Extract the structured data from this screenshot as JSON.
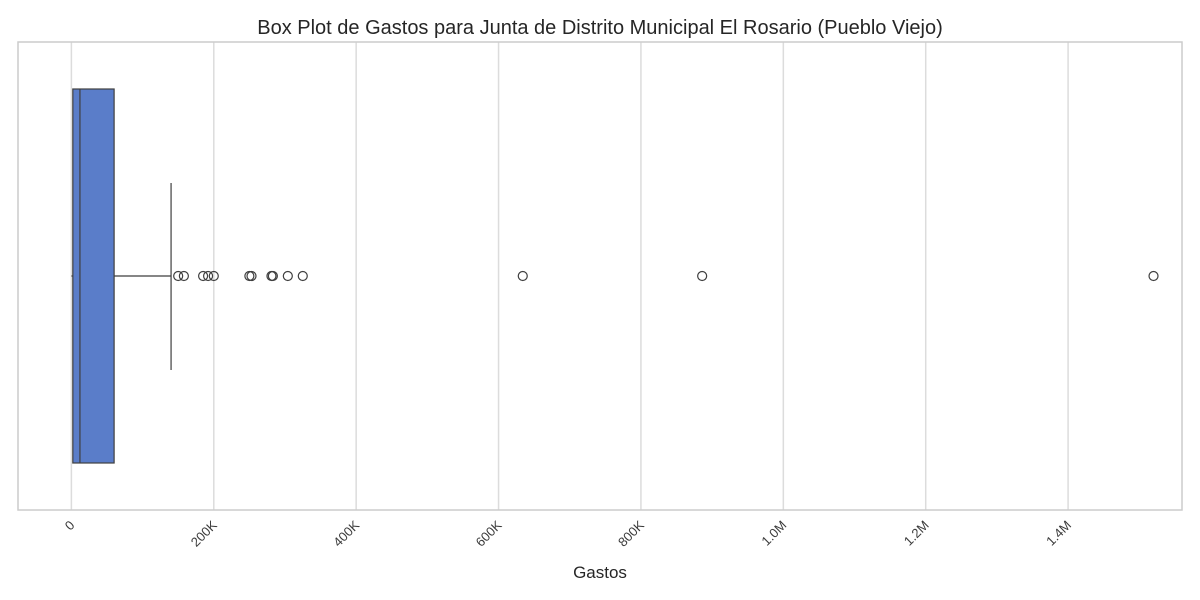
{
  "chart_data": {
    "type": "box",
    "orientation": "horizontal",
    "title": "Box Plot de Gastos para Junta de Distrito Municipal El Rosario (Pueblo Viejo)",
    "xlabel": "Gastos",
    "ylabel": "",
    "xlim": [
      -75000,
      1560000
    ],
    "x_ticks": [
      0,
      200000,
      400000,
      600000,
      800000,
      1000000,
      1200000,
      1400000
    ],
    "x_tick_labels": [
      "0",
      "200K",
      "400K",
      "600K",
      "800K",
      "1.0M",
      "1.2M",
      "1.4M"
    ],
    "tick_label_rotation": -45,
    "grid": "vertical",
    "box": {
      "min": 0,
      "q1": 2000,
      "median": 12000,
      "q3": 60000,
      "whisker_low": 0,
      "whisker_high": 140000,
      "outliers": [
        150000,
        158000,
        185000,
        192000,
        200000,
        250000,
        253000,
        281000,
        283000,
        304000,
        325000,
        634000,
        886000,
        1520000
      ]
    },
    "colors": {
      "box_fill": "#5a7dc9",
      "box_edge": "#3f3f3f",
      "grid": "#dcdcdc",
      "frame": "#cccccc"
    }
  }
}
